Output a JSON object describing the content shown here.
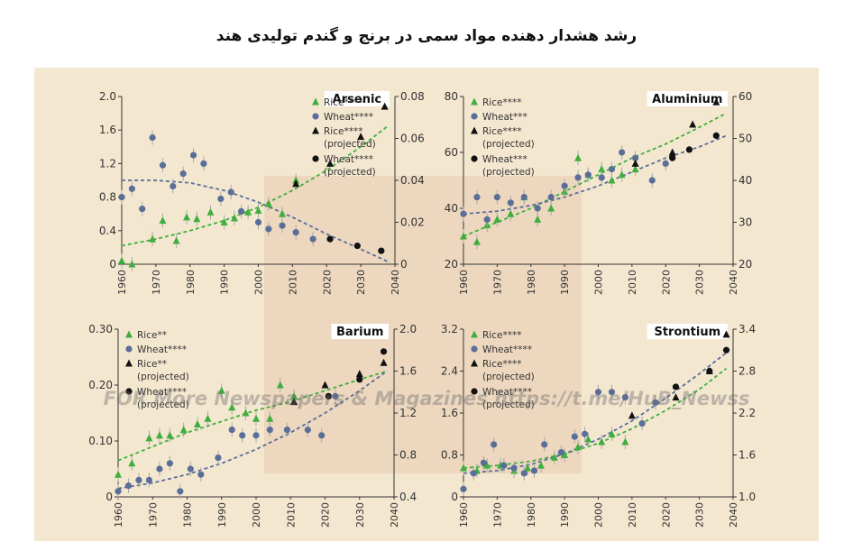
{
  "title": "رشد هشدار دهنده مواد سمی در برنج و گندم تولیدی هند",
  "watermark": "FOR More Newspapers & Magazines https://t.me/HuB_Newss",
  "colors": {
    "rice": "#3fae3f",
    "wheat": "#5a6e98",
    "projected": "#111111"
  },
  "chart_data": [
    {
      "type": "scatter",
      "title": "Arsenic",
      "x_ticks": [
        "1960",
        "1970",
        "1980",
        "1990",
        "2000",
        "2010",
        "2020",
        "2030",
        "2040"
      ],
      "xlim": [
        1960,
        2040
      ],
      "left_axis": {
        "ticks": [
          "0",
          "0.4",
          "0.8",
          "1.2",
          "1.6",
          "2.0"
        ],
        "lim": [
          0,
          2.0
        ]
      },
      "right_axis": {
        "ticks": [
          "0",
          "0.02",
          "0.04",
          "0.06",
          "0.08"
        ],
        "lim": [
          0,
          0.08
        ]
      },
      "legend": [
        "Rice****",
        "Wheat****",
        "Rice****",
        "(projected)",
        "Wheat****",
        "(projected)"
      ],
      "legend_position": "top-right",
      "series": [
        {
          "name": "Rice****",
          "axis": "left",
          "marker": "triangle",
          "color": "#3fae3f",
          "x": [
            1960,
            1963,
            1969,
            1972,
            1976,
            1979,
            1982,
            1986,
            1990,
            1993,
            1997,
            2000,
            2003,
            2007,
            2011
          ],
          "y": [
            0.04,
            0.0,
            0.3,
            0.52,
            0.28,
            0.56,
            0.54,
            0.62,
            0.5,
            0.55,
            0.62,
            0.64,
            0.72,
            0.6,
            1.0
          ]
        },
        {
          "name": "Wheat****",
          "axis": "left",
          "marker": "circle",
          "color": "#5a6e98",
          "x": [
            1960,
            1963,
            1966,
            1969,
            1972,
            1975,
            1978,
            1981,
            1984,
            1989,
            1992,
            1995,
            2000,
            2003,
            2007,
            2011,
            2016
          ],
          "y": [
            0.8,
            0.9,
            0.66,
            1.51,
            1.18,
            0.93,
            1.08,
            1.3,
            1.2,
            0.78,
            0.86,
            0.63,
            0.5,
            0.42,
            0.46,
            0.38,
            0.3
          ]
        },
        {
          "name": "Rice**** (projected)",
          "axis": "left",
          "marker": "triangle",
          "color": "#111111",
          "x": [
            2011,
            2021,
            2030,
            2037
          ],
          "y": [
            0.96,
            1.2,
            1.52,
            1.88
          ]
        },
        {
          "name": "Wheat**** (projected)",
          "axis": "left",
          "marker": "circle",
          "color": "#111111",
          "x": [
            2021,
            2029,
            2036
          ],
          "y": [
            0.3,
            0.22,
            0.16
          ]
        }
      ],
      "trend_lines": [
        {
          "color": "#3fae3f",
          "x": [
            1960,
            1970,
            1980,
            1990,
            2000,
            2010,
            2020,
            2030,
            2038
          ],
          "y": [
            0.22,
            0.3,
            0.4,
            0.52,
            0.68,
            0.88,
            1.12,
            1.4,
            1.65
          ]
        },
        {
          "color": "#5a6e98",
          "x": [
            1960,
            1970,
            1980,
            1990,
            2000,
            2010,
            2020,
            2030,
            2038
          ],
          "y": [
            1.0,
            1.0,
            0.97,
            0.88,
            0.74,
            0.56,
            0.36,
            0.18,
            0.03
          ]
        }
      ]
    },
    {
      "type": "scatter",
      "title": "Aluminium",
      "x_ticks": [
        "1960",
        "1970",
        "1980",
        "1990",
        "2000",
        "2010",
        "2020",
        "2030",
        "2040"
      ],
      "xlim": [
        1960,
        2040
      ],
      "left_axis": {
        "ticks": [
          "20",
          "40",
          "60",
          "80"
        ],
        "lim": [
          20,
          80
        ]
      },
      "right_axis": {
        "ticks": [
          "20",
          "30",
          "40",
          "50",
          "60"
        ],
        "lim": [
          20,
          60
        ]
      },
      "legend": [
        "Rice****",
        "Wheat***",
        "Rice****",
        "(projected)",
        "Wheat***",
        "(projected)"
      ],
      "legend_position": "top-left",
      "series": [
        {
          "name": "Rice****",
          "axis": "left",
          "marker": "triangle",
          "color": "#3fae3f",
          "x": [
            1960,
            1964,
            1967,
            1970,
            1974,
            1978,
            1982,
            1986,
            1990,
            1994,
            1997,
            2001,
            2004,
            2007,
            2011
          ],
          "y": [
            30,
            28,
            34,
            36,
            38,
            44,
            36,
            40,
            46,
            58,
            52,
            54,
            50,
            52,
            54
          ]
        },
        {
          "name": "Wheat***",
          "axis": "left",
          "marker": "circle",
          "color": "#5a6e98",
          "x": [
            1960,
            1964,
            1967,
            1970,
            1974,
            1978,
            1982,
            1986,
            1990,
            1994,
            1997,
            2001,
            2004,
            2007,
            2011,
            2016,
            2020
          ],
          "y": [
            38,
            44,
            36,
            44,
            42,
            44,
            40,
            44,
            48,
            51,
            52,
            51,
            54,
            60,
            58,
            50,
            56
          ]
        },
        {
          "name": "Rice**** (projected)",
          "axis": "left",
          "marker": "triangle",
          "color": "#111111",
          "x": [
            2011,
            2022,
            2028,
            2035
          ],
          "y": [
            56,
            60,
            70,
            78
          ]
        },
        {
          "name": "Wheat*** (projected)",
          "axis": "left",
          "marker": "circle",
          "color": "#111111",
          "x": [
            2022,
            2027,
            2035
          ],
          "y": [
            58,
            61,
            66
          ]
        }
      ],
      "trend_lines": [
        {
          "color": "#3fae3f",
          "x": [
            1960,
            1970,
            1980,
            1990,
            2000,
            2010,
            2020,
            2030,
            2038
          ],
          "y": [
            30,
            35,
            40,
            46,
            52,
            58,
            63,
            69,
            74
          ]
        },
        {
          "color": "#5a6e98",
          "x": [
            1960,
            1970,
            1980,
            1990,
            2000,
            2010,
            2020,
            2030,
            2038
          ],
          "y": [
            38,
            39,
            41,
            44,
            48,
            53,
            58,
            62,
            66
          ]
        }
      ]
    },
    {
      "type": "scatter",
      "title": "Barium",
      "x_ticks": [
        "1960",
        "1970",
        "1980",
        "1990",
        "2000",
        "2010",
        "2020",
        "2030",
        "2040"
      ],
      "xlim": [
        1960,
        2040
      ],
      "left_axis": {
        "ticks": [
          "0",
          "0.10",
          "0.20",
          "0.30"
        ],
        "lim": [
          0,
          0.3
        ]
      },
      "right_axis": {
        "ticks": [
          "0.4",
          "0.8",
          "1.2",
          "1.6",
          "2.0"
        ],
        "lim": [
          0.4,
          2.0
        ]
      },
      "legend": [
        "Rice**",
        "Wheat****",
        "Rice**",
        "(projected)",
        "Wheat****",
        "(projected)"
      ],
      "legend_position": "top-left",
      "series": [
        {
          "name": "Rice**",
          "axis": "left",
          "marker": "triangle",
          "color": "#3fae3f",
          "x": [
            1960,
            1964,
            1969,
            1972,
            1975,
            1979,
            1983,
            1986,
            1990,
            1993,
            1997,
            2000,
            2004,
            2007,
            2011
          ],
          "y": [
            0.04,
            0.06,
            0.105,
            0.11,
            0.11,
            0.12,
            0.13,
            0.14,
            0.19,
            0.16,
            0.15,
            0.14,
            0.14,
            0.2,
            0.18
          ]
        },
        {
          "name": "Wheat****",
          "axis": "left",
          "marker": "circle",
          "color": "#5a6e98",
          "x": [
            1960,
            1963,
            1966,
            1969,
            1972,
            1975,
            1978,
            1981,
            1984,
            1989,
            1993,
            1996,
            2000,
            2004,
            2009,
            2015,
            2019,
            2023
          ],
          "y": [
            0.01,
            0.02,
            0.03,
            0.03,
            0.05,
            0.06,
            0.01,
            0.05,
            0.04,
            0.07,
            0.12,
            0.11,
            0.11,
            0.12,
            0.12,
            0.12,
            0.11,
            0.18
          ]
        },
        {
          "name": "Rice** (projected)",
          "axis": "left",
          "marker": "triangle",
          "color": "#111111",
          "x": [
            2011,
            2020,
            2030,
            2037
          ],
          "y": [
            0.17,
            0.2,
            0.22,
            0.24
          ]
        },
        {
          "name": "Wheat**** (projected)",
          "axis": "left",
          "marker": "circle",
          "color": "#111111",
          "x": [
            2021,
            2030,
            2037
          ],
          "y": [
            0.18,
            0.21,
            0.26
          ]
        }
      ],
      "trend_lines": [
        {
          "color": "#3fae3f",
          "x": [
            1960,
            1970,
            1980,
            1990,
            2000,
            2010,
            2020,
            2030,
            2038
          ],
          "y": [
            0.065,
            0.09,
            0.115,
            0.135,
            0.155,
            0.17,
            0.19,
            0.21,
            0.225
          ]
        },
        {
          "color": "#5a6e98",
          "x": [
            1960,
            1970,
            1980,
            1990,
            2000,
            2010,
            2020,
            2030,
            2038
          ],
          "y": [
            0.015,
            0.025,
            0.04,
            0.06,
            0.085,
            0.115,
            0.15,
            0.19,
            0.225
          ]
        }
      ]
    },
    {
      "type": "scatter",
      "title": "Strontium",
      "x_ticks": [
        "1960",
        "1970",
        "1980",
        "1990",
        "2000",
        "2010",
        "2020",
        "2030",
        "2040"
      ],
      "xlim": [
        1960,
        2040
      ],
      "left_axis": {
        "ticks": [
          "0",
          "0.8",
          "1.6",
          "2.4",
          "3.2"
        ],
        "lim": [
          0,
          3.2
        ]
      },
      "right_axis": {
        "ticks": [
          "1.0",
          "1.6",
          "2.2",
          "2.8",
          "3.4"
        ],
        "lim": [
          1.0,
          3.4
        ]
      },
      "legend": [
        "Rice****",
        "Wheat****",
        "Rice****",
        "(projected)",
        "Wheat****",
        "(projected)"
      ],
      "legend_position": "top-left",
      "series": [
        {
          "name": "Rice****",
          "axis": "left",
          "marker": "triangle",
          "color": "#3fae3f",
          "x": [
            1960,
            1964,
            1967,
            1971,
            1975,
            1979,
            1983,
            1987,
            1990,
            1994,
            1997,
            2001,
            2004,
            2008
          ],
          "y": [
            0.55,
            0.5,
            0.6,
            0.6,
            0.5,
            0.55,
            0.6,
            0.75,
            0.8,
            0.95,
            1.1,
            1.05,
            1.2,
            1.05
          ]
        },
        {
          "name": "Wheat****",
          "axis": "left",
          "marker": "circle",
          "color": "#5a6e98",
          "x": [
            1960,
            1963,
            1966,
            1969,
            1972,
            1975,
            1978,
            1981,
            1984,
            1989,
            1993,
            1996,
            2000,
            2004,
            2008,
            2013,
            2017
          ],
          "y": [
            0.15,
            0.45,
            0.65,
            1.0,
            0.6,
            0.55,
            0.45,
            0.5,
            1.0,
            0.85,
            1.15,
            1.2,
            2.0,
            2.0,
            1.9,
            1.4,
            1.8
          ]
        },
        {
          "name": "Rice**** (projected)",
          "axis": "left",
          "marker": "triangle",
          "color": "#111111",
          "x": [
            2010,
            2023,
            2033,
            2038
          ],
          "y": [
            1.55,
            1.9,
            2.4,
            3.1
          ]
        },
        {
          "name": "Wheat**** (projected)",
          "axis": "left",
          "marker": "circle",
          "color": "#111111",
          "x": [
            2023,
            2033,
            2038
          ],
          "y": [
            2.1,
            2.4,
            2.8
          ]
        }
      ],
      "trend_lines": [
        {
          "color": "#3fae3f",
          "x": [
            1960,
            1970,
            1980,
            1990,
            2000,
            2010,
            2020,
            2030,
            2038
          ],
          "y": [
            0.55,
            0.6,
            0.68,
            0.82,
            1.02,
            1.3,
            1.65,
            2.05,
            2.45
          ]
        },
        {
          "color": "#5a6e98",
          "x": [
            1960,
            1970,
            1980,
            1990,
            2000,
            2010,
            2020,
            2030,
            2038
          ],
          "y": [
            0.45,
            0.5,
            0.62,
            0.82,
            1.1,
            1.45,
            1.88,
            2.35,
            2.75
          ]
        }
      ]
    }
  ]
}
